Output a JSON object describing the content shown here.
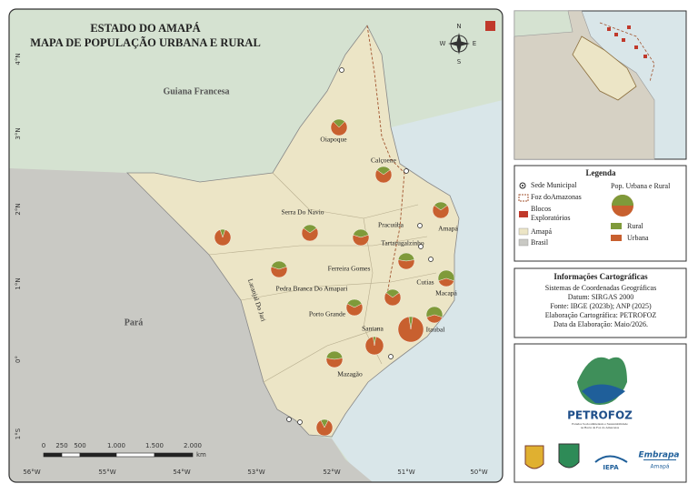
{
  "title": [
    "ESTADO DO AMAPÁ",
    "MAPA DE POPULAÇÃO URBANA E RURAL"
  ],
  "compass": {
    "n": "N",
    "s": "S",
    "e": "E",
    "w": "W"
  },
  "regions": {
    "guiana": "Guiana Francesa",
    "para": "Pará"
  },
  "lat_labels": [
    "4°N",
    "3°N",
    "2°N",
    "1°N",
    "0°",
    "1°S"
  ],
  "lon_labels": [
    "56°W",
    "55°W",
    "54°W",
    "53°W",
    "52°W",
    "51°W",
    "50°W"
  ],
  "scale": {
    "ticks": [
      "0",
      "250",
      "500",
      "1.000",
      "1.500",
      "2.000"
    ],
    "unit": "km"
  },
  "municipalities": [
    {
      "name": "Oiapoque",
      "urbana": 75,
      "rural": 25
    },
    {
      "name": "Calçoene",
      "urbana": 70,
      "rural": 30
    },
    {
      "name": "Amapá",
      "urbana": 70,
      "rural": 30
    },
    {
      "name": "Serra Do Navio",
      "urbana": 70,
      "rural": 30
    },
    {
      "name": "Pracuúba",
      "urbana": 60,
      "rural": 40
    },
    {
      "name": "Tartarugalzinho",
      "urbana": 55,
      "rural": 45
    },
    {
      "name": "Laranjal Do Jari",
      "urbana": 90,
      "rural": 10
    },
    {
      "name": "Pedra Branca Do Amapari",
      "urbana": 60,
      "rural": 40
    },
    {
      "name": "Cutias",
      "urbana": 40,
      "rural": 60
    },
    {
      "name": "Ferreira Gomes",
      "urbana": 70,
      "rural": 30
    },
    {
      "name": "Porto Grande",
      "urbana": 65,
      "rural": 35
    },
    {
      "name": "Itaubal",
      "urbana": 40,
      "rural": 60
    },
    {
      "name": "Macapá",
      "urbana": 95,
      "rural": 5
    },
    {
      "name": "Santana",
      "urbana": 95,
      "rural": 5
    },
    {
      "name": "Mazagão",
      "urbana": 55,
      "rural": 45
    },
    {
      "name": null,
      "urbana": 85,
      "rural": 15
    }
  ],
  "legend": {
    "title": "Legenda",
    "sede": "Sede Municipal",
    "foz": "Foz doAmazonas",
    "blocos": [
      "Blocos",
      "Exploratórios"
    ],
    "amapa": "Amapá",
    "brasil": "Brasil",
    "pop": "Pop. Urbana e Rural",
    "rural": "Rural",
    "urbana": "Urbana"
  },
  "info": {
    "title": "Informações Cartográficas",
    "lines": [
      "Sistemas de Coordenadas Geográficas",
      "Datum: SIRGAS 2000",
      "Fonte: IBGE (2023b); ANP (2025)",
      "Elaboração Cartográfica: PETROFOZ",
      "Data da Elaboração: Maio/2026."
    ]
  },
  "logos": {
    "petrofoz": "PETROFOZ",
    "tagline": [
      "Estudos Socioambientais e Sustentabilidade",
      "na Bacia da Foz do Amazonas"
    ],
    "iepa": "IEPA",
    "embrapa": "Embrapa",
    "amapa": "Amapá"
  }
}
